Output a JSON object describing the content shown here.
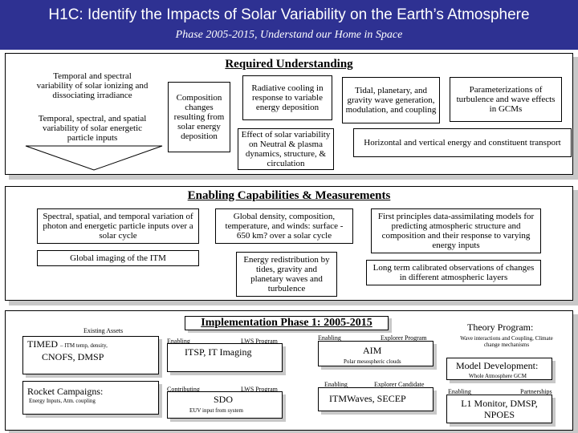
{
  "header": {
    "title": "H1C: Identify the Impacts of Solar Variability on the Earth’s Atmosphere",
    "subtitle": "Phase 2005-2015, Understand our Home in Space"
  },
  "colors": {
    "header_bg": "#2e3192",
    "header_text": "#ffffff",
    "shadow": "#c8c8c8"
  },
  "required": {
    "title": "Required Understanding",
    "items": [
      "Temporal and spectral variability of solar ionizing and dissociating irradiance",
      "Temporal, spectral, and spatial variability of solar energetic particle inputs",
      "Composition changes resulting from solar energy deposition",
      "Radiative cooling in response to variable energy deposition",
      "Effect of solar variability on Neutral & plasma dynamics, structure, & circulation",
      "Tidal, planetary, and gravity wave generation, modulation, and coupling",
      "Parameterizations of turbulence and wave effects in GCMs",
      "Horizontal and vertical energy and constituent transport"
    ]
  },
  "enabling": {
    "title": "Enabling Capabilities & Measurements",
    "items": [
      "Spectral, spatial, and temporal variation of photon and energetic particle inputs over a solar cycle",
      "Global density, composition, temperature, and winds: surface - 650 km? over a solar cycle",
      "First principles data-assimilating models for predicting atmospheric structure and composition and their response to varying energy inputs",
      "Global imaging of the ITM",
      "Energy redistribution by tides, gravity and planetary waves and turbulence",
      "Long term calibrated observations of changes in different atmospheric layers"
    ]
  },
  "implementation": {
    "title": "Implementation Phase 1: 2005-2015",
    "existing": {
      "label": "Existing Assets",
      "timed_name": "TIMED",
      "timed_note": "– ITM temp, density,",
      "timed_line2": "CNOFS, DMSP"
    },
    "rocket": {
      "name": "Rocket Campaigns:",
      "note": "Energy Inputs, Atm. coupling"
    },
    "itsp": {
      "enabling": "Enabling",
      "program": "LWS Program",
      "name": "ITSP, IT Imaging"
    },
    "sdo": {
      "contributing": "Contributing",
      "program": "LWS Program",
      "name": "SDO",
      "note": "EUV input from system"
    },
    "aim": {
      "enabling": "Enabling",
      "program": "Explorer Program",
      "name": "AIM",
      "note": "Polar mesospheric clouds"
    },
    "itmwaves": {
      "enabling": "Enabling",
      "program": "Explorer Candidate",
      "name": "ITMWaves, SECEP"
    },
    "theory": {
      "name": "Theory Program:",
      "note": "Wave interactions and Coupling, Climate change mechanisms"
    },
    "model": {
      "name": "Model Development:",
      "note": "Whole Atmosphere GCM"
    },
    "l1": {
      "enabling": "Enabling",
      "partnerships": "Partnerships",
      "name": "L1 Monitor, DMSP, NPOES"
    }
  }
}
